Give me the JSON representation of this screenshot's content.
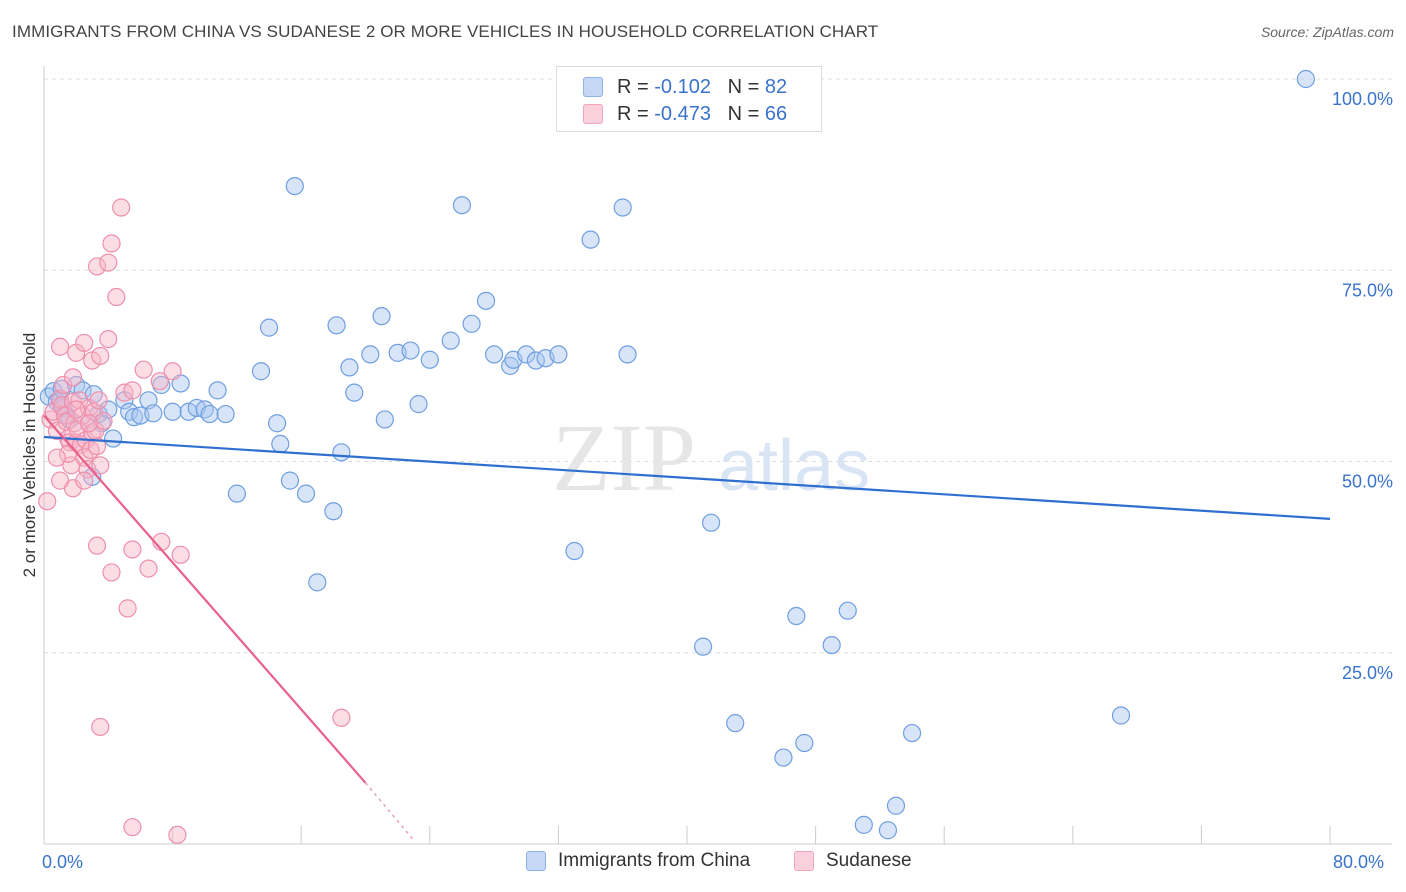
{
  "title": "IMMIGRANTS FROM CHINA VS SUDANESE 2 OR MORE VEHICLES IN HOUSEHOLD CORRELATION CHART",
  "source": "Source: ZipAtlas.com",
  "watermark": {
    "zip": "ZIP",
    "atlas": "atlas"
  },
  "legend": {
    "rows": [
      {
        "r_label": "R =",
        "r_value": "-0.102",
        "n_label": "N =",
        "n_value": "82",
        "color": "#a8c6f0"
      },
      {
        "r_label": "R =",
        "r_value": "-0.473",
        "n_label": "N =",
        "n_value": "66",
        "color": "#f6b4c8"
      }
    ]
  },
  "bottom_legend": {
    "china": "Immigrants from China",
    "sudanese": "Sudanese"
  },
  "chart_data": {
    "type": "scatter",
    "title": "IMMIGRANTS FROM CHINA VS SUDANESE 2 OR MORE VEHICLES IN HOUSEHOLD CORRELATION CHART",
    "xlabel": "",
    "ylabel": "2 or more Vehicles in Household",
    "xlim": [
      0,
      80
    ],
    "ylim": [
      0,
      100
    ],
    "x_tick_labels": [
      "0.0%",
      "80.0%"
    ],
    "y_ticks": [
      25,
      50,
      75,
      100
    ],
    "y_tick_labels": [
      "25.0%",
      "50.0%",
      "75.0%",
      "100.0%"
    ],
    "grid": true,
    "series": [
      {
        "name": "Immigrants from China",
        "color": "#a8c6f0",
        "stroke": "#6f9fe0",
        "trend": {
          "x": [
            0,
            80
          ],
          "y": [
            53.2,
            42.5
          ],
          "color": "#2f6fd0"
        },
        "points": [
          [
            0.3,
            58.5
          ],
          [
            0.6,
            59.2
          ],
          [
            0.8,
            57.8
          ],
          [
            1.0,
            58.0
          ],
          [
            1.1,
            59.5
          ],
          [
            1.2,
            57.0
          ],
          [
            1.4,
            56.0
          ],
          [
            1.6,
            55.5
          ],
          [
            2.0,
            60.0
          ],
          [
            2.4,
            59.3
          ],
          [
            2.8,
            55.0
          ],
          [
            3.1,
            58.8
          ],
          [
            3.4,
            56.2
          ],
          [
            3.6,
            55.0
          ],
          [
            4.0,
            56.8
          ],
          [
            4.3,
            53.0
          ],
          [
            5.0,
            58.0
          ],
          [
            5.3,
            56.5
          ],
          [
            5.6,
            55.8
          ],
          [
            6.0,
            56.0
          ],
          [
            6.5,
            58.0
          ],
          [
            6.8,
            56.3
          ],
          [
            7.3,
            60.0
          ],
          [
            8.0,
            56.5
          ],
          [
            8.5,
            60.2
          ],
          [
            9.0,
            56.5
          ],
          [
            9.5,
            57.0
          ],
          [
            10.0,
            56.8
          ],
          [
            10.3,
            56.2
          ],
          [
            10.8,
            59.3
          ],
          [
            11.3,
            56.2
          ],
          [
            12.0,
            45.8
          ],
          [
            13.5,
            61.8
          ],
          [
            14.0,
            67.5
          ],
          [
            14.5,
            55.0
          ],
          [
            14.7,
            52.3
          ],
          [
            15.3,
            47.5
          ],
          [
            15.6,
            86.0
          ],
          [
            16.3,
            45.8
          ],
          [
            17.0,
            34.2
          ],
          [
            18.0,
            43.5
          ],
          [
            18.2,
            67.8
          ],
          [
            18.5,
            51.2
          ],
          [
            19.0,
            62.3
          ],
          [
            19.3,
            59.0
          ],
          [
            20.3,
            64.0
          ],
          [
            21.0,
            69.0
          ],
          [
            21.2,
            55.5
          ],
          [
            22.0,
            64.2
          ],
          [
            22.8,
            64.5
          ],
          [
            23.3,
            57.5
          ],
          [
            24.0,
            63.3
          ],
          [
            25.3,
            65.8
          ],
          [
            26.0,
            83.5
          ],
          [
            26.6,
            68.0
          ],
          [
            27.5,
            71.0
          ],
          [
            28.0,
            64.0
          ],
          [
            29.0,
            62.5
          ],
          [
            29.2,
            63.3
          ],
          [
            30.0,
            64.0
          ],
          [
            30.6,
            63.2
          ],
          [
            31.2,
            63.5
          ],
          [
            32.0,
            64.0
          ],
          [
            33.0,
            38.3
          ],
          [
            34.0,
            79.0
          ],
          [
            36.0,
            83.2
          ],
          [
            36.3,
            64.0
          ],
          [
            41.0,
            25.8
          ],
          [
            41.5,
            42.0
          ],
          [
            43.0,
            15.8
          ],
          [
            46.0,
            11.3
          ],
          [
            46.8,
            29.8
          ],
          [
            47.3,
            13.2
          ],
          [
            49.0,
            26.0
          ],
          [
            50.0,
            30.5
          ],
          [
            51.0,
            2.5
          ],
          [
            52.5,
            1.8
          ],
          [
            53.0,
            5.0
          ],
          [
            54.0,
            14.5
          ],
          [
            67.0,
            16.8
          ],
          [
            78.5,
            100.0
          ],
          [
            3.0,
            48.0
          ]
        ]
      },
      {
        "name": "Sudanese",
        "color": "#f6b4c8",
        "stroke": "#ee8fac",
        "trend": {
          "x": [
            0,
            20
          ],
          "y": [
            56.0,
            8.0
          ],
          "dash": {
            "x": [
              20,
              23
            ],
            "y": [
              8.0,
              0.5
            ]
          },
          "color": "#e8608c"
        },
        "points": [
          [
            0.2,
            44.8
          ],
          [
            0.4,
            55.5
          ],
          [
            0.6,
            56.5
          ],
          [
            0.8,
            54.0
          ],
          [
            1.0,
            58.2
          ],
          [
            1.1,
            57.3
          ],
          [
            1.2,
            60.0
          ],
          [
            1.3,
            56.0
          ],
          [
            1.4,
            55.2
          ],
          [
            1.5,
            53.0
          ],
          [
            1.6,
            52.5
          ],
          [
            1.7,
            49.5
          ],
          [
            1.8,
            57.8
          ],
          [
            1.9,
            55.0
          ],
          [
            2.0,
            52.5
          ],
          [
            2.1,
            54.2
          ],
          [
            2.2,
            58.0
          ],
          [
            2.3,
            52.2
          ],
          [
            2.4,
            56.0
          ],
          [
            2.5,
            50.5
          ],
          [
            2.6,
            52.8
          ],
          [
            2.7,
            49.0
          ],
          [
            2.8,
            57.0
          ],
          [
            2.9,
            51.5
          ],
          [
            3.0,
            53.8
          ],
          [
            3.1,
            56.5
          ],
          [
            3.2,
            54.0
          ],
          [
            3.3,
            52.0
          ],
          [
            3.4,
            58.0
          ],
          [
            3.5,
            49.5
          ],
          [
            3.7,
            55.3
          ],
          [
            1.0,
            65.0
          ],
          [
            1.8,
            61.0
          ],
          [
            2.0,
            64.2
          ],
          [
            2.5,
            65.5
          ],
          [
            3.0,
            63.2
          ],
          [
            3.5,
            63.8
          ],
          [
            4.0,
            66.0
          ],
          [
            3.3,
            75.5
          ],
          [
            4.0,
            76.0
          ],
          [
            4.2,
            78.5
          ],
          [
            4.5,
            71.5
          ],
          [
            4.8,
            83.2
          ],
          [
            5.0,
            59.0
          ],
          [
            5.5,
            59.3
          ],
          [
            6.2,
            62.0
          ],
          [
            7.2,
            60.5
          ],
          [
            8.0,
            61.8
          ],
          [
            1.8,
            46.5
          ],
          [
            2.5,
            47.5
          ],
          [
            3.3,
            39.0
          ],
          [
            4.2,
            35.5
          ],
          [
            5.2,
            30.8
          ],
          [
            5.5,
            38.5
          ],
          [
            6.5,
            36.0
          ],
          [
            7.3,
            39.5
          ],
          [
            8.5,
            37.8
          ],
          [
            3.5,
            15.3
          ],
          [
            1.0,
            47.5
          ],
          [
            1.5,
            51.0
          ],
          [
            18.5,
            16.5
          ],
          [
            5.5,
            2.2
          ],
          [
            8.3,
            1.2
          ],
          [
            2.8,
            55.0
          ],
          [
            2.0,
            56.8
          ],
          [
            0.8,
            50.5
          ]
        ]
      }
    ]
  }
}
